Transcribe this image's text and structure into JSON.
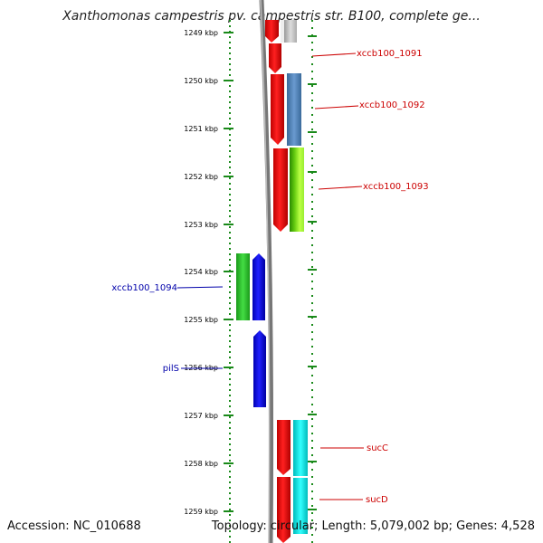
{
  "viewer": {
    "title": "Xanthomonas campestris pv. campestris str. B100, complete ge...",
    "accession": "Accession: NC_010688",
    "topology_info": "Topology: circular; Length: 5,079,002 bp; Genes: 4,528"
  },
  "axis": {
    "unit": "kbp",
    "ticks": [
      "1249 kbp",
      "1250 kbp",
      "1251 kbp",
      "1252 kbp",
      "1253 kbp",
      "1254 kbp",
      "1255 kbp",
      "1256 kbp",
      "1257 kbp",
      "1258 kbp",
      "1259 kbp"
    ]
  },
  "genes": [
    {
      "label": "xccb100_1091",
      "color": "#cc0000"
    },
    {
      "label": "xccb100_1092",
      "color": "#cc0000"
    },
    {
      "label": "xccb100_1093",
      "color": "#cc0000"
    },
    {
      "label": "xccb100_1094",
      "color": "#0000aa"
    },
    {
      "label": "pilS",
      "color": "#0000aa"
    },
    {
      "label": "sucC",
      "color": "#cc0000"
    },
    {
      "label": "sucD",
      "color": "#cc0000"
    }
  ],
  "colors": {
    "gene_red": "#ff0000",
    "gene_blue": "#0000ff",
    "feature_green": "#33cc33",
    "feature_steelblue": "#4f81bd",
    "feature_lime": "#88dd22",
    "feature_cyan": "#00eeee",
    "feature_gray": "#bbbbbb",
    "dotted_track": "#1a8a1a",
    "backbone": "#777777"
  }
}
